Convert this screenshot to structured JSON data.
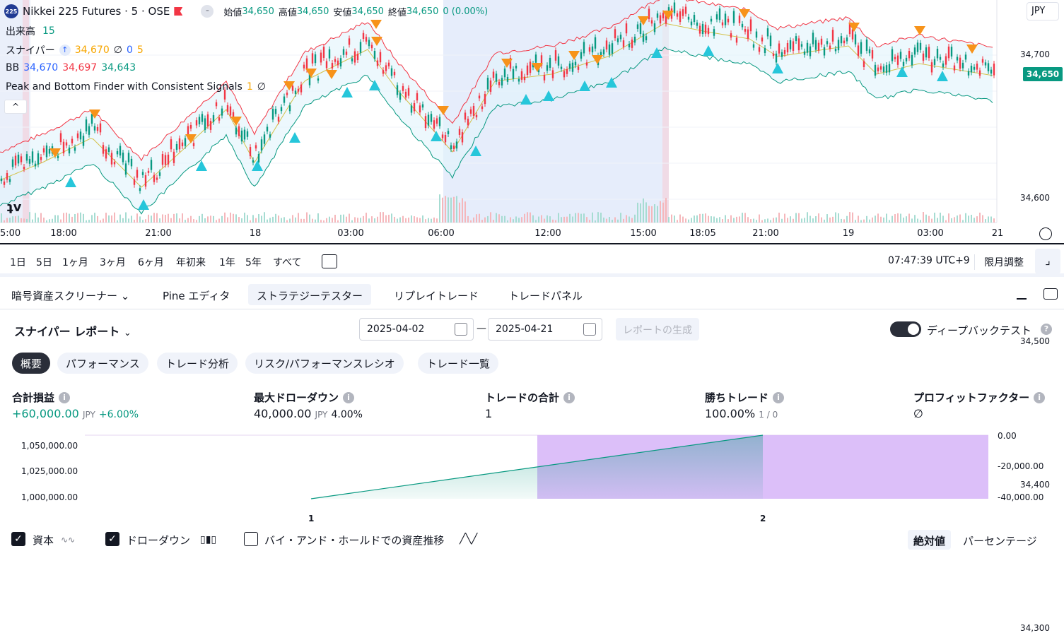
{
  "chart": {
    "symbol_badge": "225",
    "symbol_title": "Nikkei 225 Futures · 5 · OSE",
    "ohlc": {
      "open_label": "始値",
      "open": "34,650",
      "high_label": "高値",
      "high": "34,650",
      "low_label": "安値",
      "low": "34,650",
      "close_label": "終値",
      "close": "34,650",
      "change": "0 (0.00%)"
    },
    "volume": {
      "label": "出来高",
      "value": "15"
    },
    "sniper": {
      "label": "スナイパー",
      "value": "34,670",
      "null_symbol": "∅",
      "a": "0",
      "b": "5"
    },
    "bb": {
      "label": "BB",
      "basis": "34,670",
      "upper": "34,697",
      "lower": "34,643"
    },
    "peak_finder": {
      "label": "Peak and Bottom Finder with Consistent Signals",
      "value": "1",
      "null_symbol": "∅"
    },
    "currency": "JPY",
    "current_price": "34,650",
    "price_ticks": [
      "34,700",
      "34,600",
      "34,500",
      "34,400",
      "34,300"
    ],
    "price_tick_values": [
      34700,
      34600,
      34500,
      34400,
      34300
    ],
    "time_ticks": [
      "5:00",
      "18:00",
      "21:00",
      "18",
      "03:00",
      "06:00",
      "12:00",
      "15:00",
      "18:05",
      "21:00",
      "19",
      "03:00",
      "21"
    ],
    "colors": {
      "up": "#089981",
      "down": "#f23645",
      "upper_band": "#f23645",
      "lower_band": "#089981",
      "basis": "#d4c24a",
      "peak": "#f7931a",
      "bottom": "#26c6da",
      "session": "#e3ebfb"
    }
  },
  "ranges": [
    "1日",
    "5日",
    "1ヶ月",
    "3ヶ月",
    "6ヶ月",
    "年初来",
    "1年",
    "5年",
    "すべて"
  ],
  "clock": "07:47:39 UTC+9",
  "adjust_label": "限月調整",
  "bottom_tabs": [
    "暗号資産スクリーナー",
    "Pine エディタ",
    "ストラテジーテスター",
    "リプレイトレード",
    "トレードパネル"
  ],
  "report": {
    "title": "スナイパー レポート",
    "date_from": "2025-04-02",
    "date_to": "2025-04-21",
    "date_sep": "—",
    "generate_label": "レポートの生成",
    "deep_label": "ディープバックテスト"
  },
  "subtabs": [
    "概要",
    "パフォーマンス",
    "トレード分析",
    "リスク/パフォーマンスレシオ",
    "トレード一覧"
  ],
  "metrics": {
    "pnl": {
      "title": "合計損益",
      "value": "+60,000.00",
      "unit": "JPY",
      "pct": "+6.00%"
    },
    "dd": {
      "title": "最大ドローダウン",
      "value": "40,000.00",
      "unit": "JPY",
      "pct": "4.00%"
    },
    "trades": {
      "title": "トレードの合計",
      "value": "1"
    },
    "win": {
      "title": "勝ちトレード",
      "value": "100.00%",
      "ratio": "1 / 0"
    },
    "pf": {
      "title": "プロフィットファクター",
      "value": "∅"
    }
  },
  "equity_chart": {
    "left_ticks": [
      "1,050,000.00",
      "1,025,000.00",
      "1,000,000.00"
    ],
    "right_ticks": [
      "0.00",
      "-20,000.00",
      "-40,000.00"
    ],
    "x_ticks": [
      "1",
      "2"
    ]
  },
  "chart_data": {
    "type": "area",
    "x": [
      1,
      2
    ],
    "series": [
      {
        "values": [
          1000000,
          1060000
        ]
      },
      {
        "values": [
          0,
          -40000
        ]
      }
    ],
    "ylim": [
      1000000,
      1060000
    ],
    "ylim_right": [
      -40000,
      0
    ],
    "legend": [
      "資本",
      "ドローダウン",
      "バイ・アンド・ホールドでの資産推移"
    ]
  },
  "legend_checks": [
    {
      "label": "資本",
      "checked": true
    },
    {
      "label": "ドローダウン",
      "checked": true
    },
    {
      "label": "バイ・アンド・ホールドでの資産推移",
      "checked": false
    }
  ],
  "mode_buttons": [
    "絶対値",
    "パーセンテージ"
  ]
}
